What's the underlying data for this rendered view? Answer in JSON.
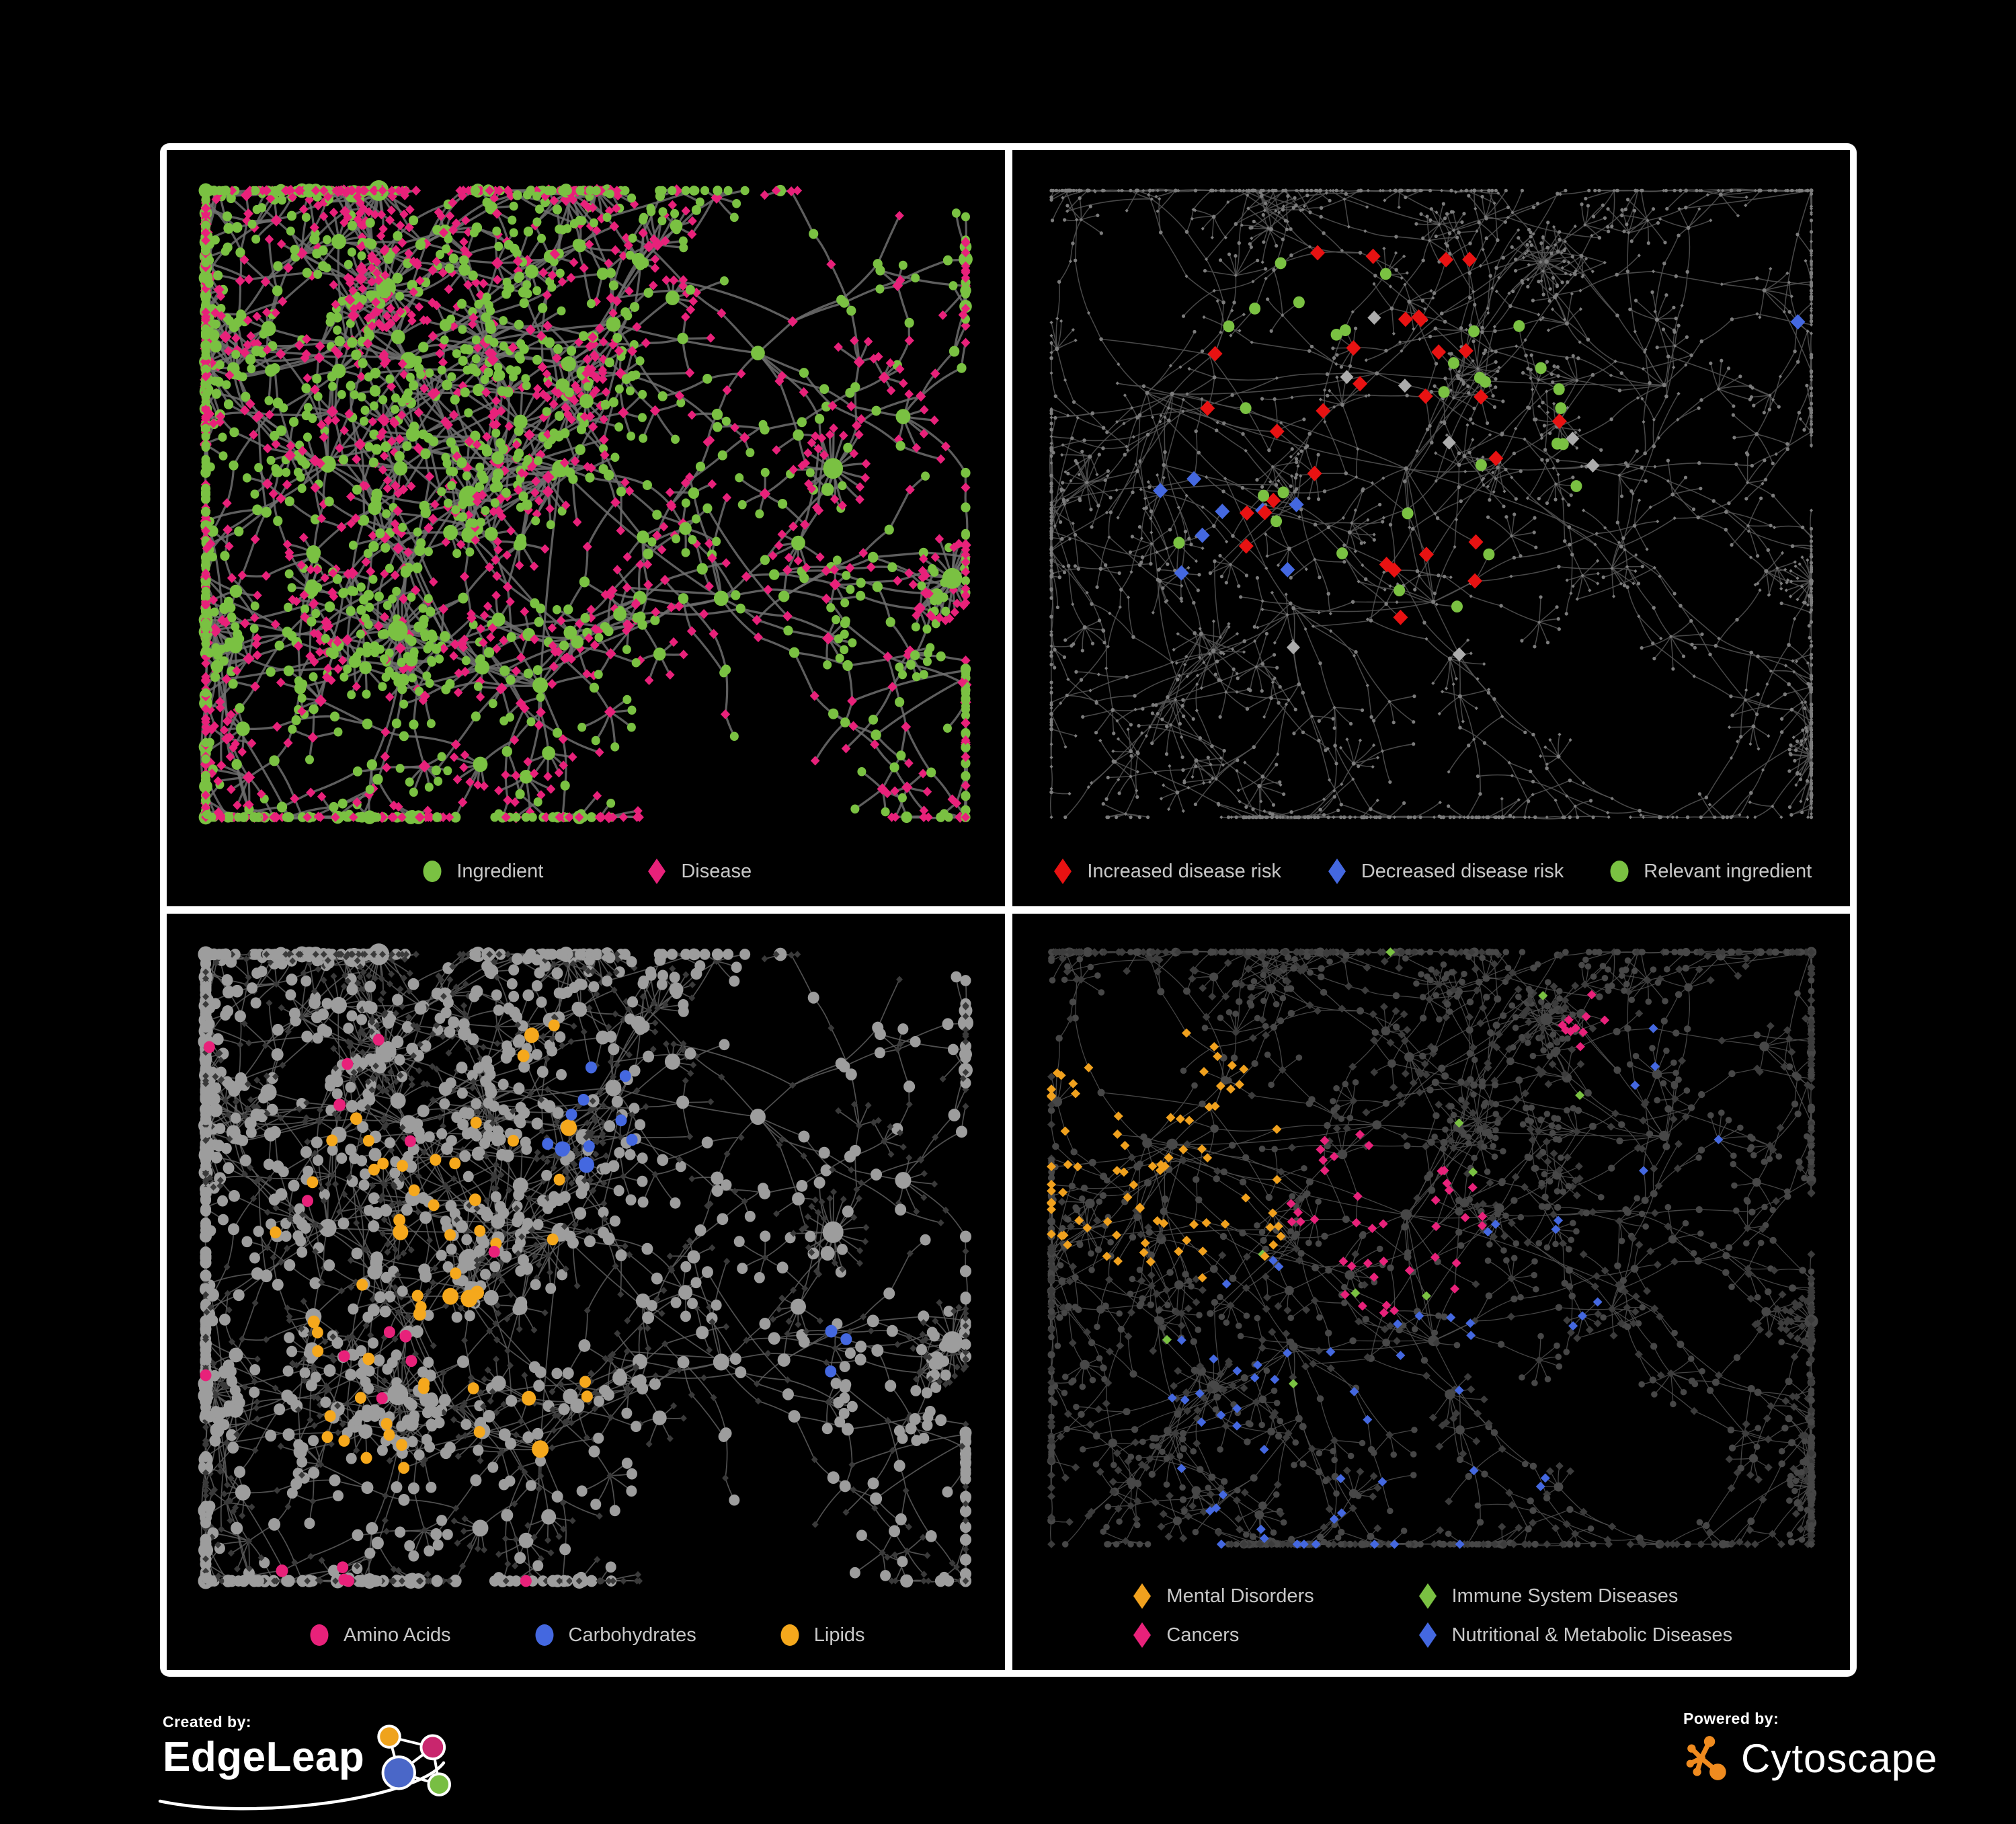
{
  "page": {
    "background": "#000000",
    "frame_color": "#FFFFFF",
    "panel_background": "#000000",
    "legend_text_color": "#C8C8C8"
  },
  "panels": [
    {
      "id": "ingredient-disease",
      "legend": {
        "gap": 150,
        "columns": 1,
        "items": [
          {
            "label": "Ingredient",
            "shape": "circle",
            "color": "#7AC142"
          },
          {
            "label": "Disease",
            "shape": "diamond",
            "color": "#E8217A"
          }
        ]
      },
      "network": {
        "seed": 11,
        "style": {
          "mode": "typed",
          "edge": {
            "color": "#6E6E6E",
            "w": 3.2
          },
          "circle": {
            "color": "#7AC142",
            "r": 6
          },
          "diamond": {
            "color": "#E8217A",
            "r": 6.5
          }
        }
      }
    },
    {
      "id": "disease-risk",
      "legend": {
        "gap": 64,
        "columns": 1,
        "items": [
          {
            "label": "Increased disease risk",
            "shape": "diamond",
            "color": "#E81212"
          },
          {
            "label": "Decreased disease risk",
            "shape": "diamond",
            "color": "#4468E0"
          },
          {
            "label": "Relevant ingredient",
            "shape": "circle",
            "color": "#7AC142"
          }
        ]
      },
      "network": {
        "seed": 23,
        "style": {
          "mode": "highlight",
          "edge": {
            "color": "#555555",
            "w": 1.5
          },
          "base": {
            "circle": "#7C7C7C",
            "diamond": "#7C7C7C",
            "rCircle": 2.6,
            "rDiamond": 2.6,
            "degScale": 0.05
          },
          "highlights": [
            {
              "type": "diamond",
              "color": "#E81212",
              "count": 30,
              "r": 11,
              "zones": [
                [
                  0.42,
                  0.4,
                  0.3
                ],
                [
                  0.82,
                  0.82,
                  0.1
                ]
              ]
            },
            {
              "type": "diamond",
              "color": "#4468E0",
              "count": 9,
              "r": 11,
              "zones": [
                [
                  0.27,
                  0.5,
                  0.13
                ],
                [
                  0.91,
                  0.22,
                  0.05
                ]
              ]
            },
            {
              "type": "diamond",
              "color": "#ACACAC",
              "count": 8,
              "r": 10,
              "zones": [
                [
                  0.45,
                  0.45,
                  0.3
                ]
              ]
            },
            {
              "type": "circle",
              "color": "#7AC142",
              "count": 30,
              "r": 8.5,
              "zones": [
                [
                  0.42,
                  0.42,
                  0.32
                ]
              ]
            }
          ]
        }
      }
    },
    {
      "id": "nutrient-classes",
      "legend": {
        "gap": 120,
        "columns": 1,
        "items": [
          {
            "label": "Amino Acids",
            "shape": "circle",
            "color": "#E8217A"
          },
          {
            "label": "Carbohydrates",
            "shape": "circle",
            "color": "#4468E0"
          },
          {
            "label": "Lipids",
            "shape": "circle",
            "color": "#F5A81C"
          }
        ]
      },
      "network": {
        "seed": 11,
        "style": {
          "mode": "highlight",
          "edge": {
            "color": "#5E5E5E",
            "w": 1.7
          },
          "base": {
            "circle": "#9D9D9D",
            "diamond": "#3A3A3A",
            "rCircle": 7.5,
            "rDiamond": 5,
            "degScale": 0.5
          },
          "highlights": [
            {
              "type": "circle",
              "color": "#F5A81C",
              "count": 55,
              "r": 8.5,
              "zones": [
                [
                  0.42,
                  0.3,
                  0.16
                ],
                [
                  0.33,
                  0.52,
                  0.28
                ]
              ]
            },
            {
              "type": "circle",
              "color": "#4468E0",
              "count": 14,
              "r": 8.5,
              "zones": [
                [
                  0.5,
                  0.27,
                  0.09
                ],
                [
                  0.8,
                  0.63,
                  0.05
                ]
              ]
            },
            {
              "type": "circle",
              "color": "#E8217A",
              "count": 18,
              "r": 8.5,
              "zones": [
                [
                  0.35,
                  0.68,
                  0.45
                ],
                [
                  0.15,
                  0.35,
                  0.25
                ]
              ]
            }
          ]
        }
      }
    },
    {
      "id": "disease-classes",
      "legend": {
        "gap": 150,
        "columns": 2,
        "items": [
          {
            "label": "Mental Disorders",
            "shape": "diamond",
            "color": "#F0A11E"
          },
          {
            "label": "Immune System Diseases",
            "shape": "diamond",
            "color": "#7AC142"
          },
          {
            "label": "Cancers",
            "shape": "diamond",
            "color": "#E8217A"
          },
          {
            "label": "Nutritional & Metabolic Diseases",
            "shape": "diamond",
            "color": "#4468E0"
          }
        ]
      },
      "network": {
        "seed": 23,
        "style": {
          "mode": "highlight",
          "edge": {
            "color": "#515151",
            "w": 1.3
          },
          "base": {
            "circle": "#474747",
            "diamond": "#3C3C3C",
            "rCircle": 4.5,
            "rDiamond": 6,
            "degScale": 0.35
          },
          "highlights": [
            {
              "type": "diamond",
              "color": "#F0A11E",
              "count": 80,
              "r": 7,
              "zones": [
                [
                  0.16,
                  0.34,
                  0.2
                ],
                [
                  0.25,
                  0.45,
                  0.1
                ]
              ]
            },
            {
              "type": "diamond",
              "color": "#E8217A",
              "count": 50,
              "r": 7,
              "zones": [
                [
                  0.44,
                  0.46,
                  0.15
                ],
                [
                  0.7,
                  0.17,
                  0.06
                ]
              ]
            },
            {
              "type": "diamond",
              "color": "#4468E0",
              "count": 60,
              "r": 7,
              "zones": [
                [
                  0.62,
                  0.53,
                  0.11
                ],
                [
                  0.78,
                  0.3,
                  0.13
                ],
                [
                  0.4,
                  0.78,
                  0.3
                ]
              ]
            },
            {
              "type": "diamond",
              "color": "#7AC142",
              "count": 10,
              "r": 7,
              "zones": [
                [
                  0.5,
                  0.5,
                  0.45
                ]
              ]
            }
          ]
        }
      }
    }
  ],
  "footer": {
    "created_by": {
      "label": "Created by:",
      "brand": "EdgeLeap"
    },
    "powered_by": {
      "label": "Powered by:",
      "brand": "Cytoscape",
      "accent": "#EF8B1F"
    },
    "edgeleap_logo_colors": {
      "blue": "#4A67C8",
      "yellow": "#EFA31D",
      "magenta": "#C9266E",
      "green": "#78BE43"
    }
  }
}
